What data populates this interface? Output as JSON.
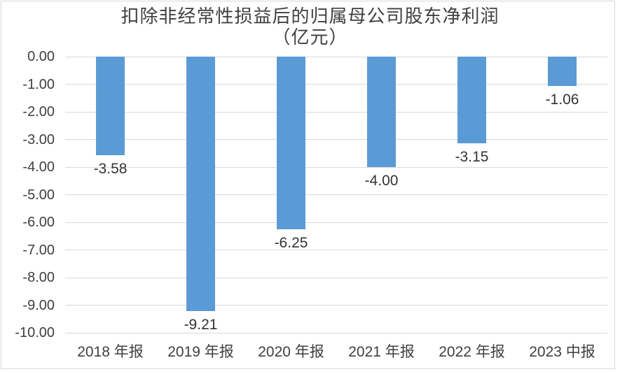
{
  "title": {
    "line1": "扣除非经常性损益后的归属母公司股东净利润",
    "line2": "（亿元）"
  },
  "colors": {
    "bar": "#5b9bd5",
    "gridline": "#d9d9d9",
    "text": "#3f3f3f",
    "border": "#d9d9d9",
    "background": "#ffffff"
  },
  "chart_data": {
    "type": "bar",
    "title": "扣除非经常性损益后的归属母公司股东净利润（亿元）",
    "categories": [
      "2018 年报",
      "2019 年报",
      "2020 年报",
      "2021 年报",
      "2022 年报",
      "2023 中报"
    ],
    "values": [
      -3.58,
      -9.21,
      -6.25,
      -4.0,
      -3.15,
      -1.06
    ],
    "data_labels": [
      "-3.58",
      "-9.21",
      "-6.25",
      "-4.00",
      "-3.15",
      "-1.06"
    ],
    "xlabel": "",
    "ylabel": "",
    "ylim": [
      -10,
      0
    ],
    "ytick_values": [
      0,
      -1,
      -2,
      -3,
      -4,
      -5,
      -6,
      -7,
      -8,
      -9,
      -10
    ],
    "yticks": [
      "0.00",
      "-1.00",
      "-2.00",
      "-3.00",
      "-4.00",
      "-5.00",
      "-6.00",
      "-7.00",
      "-8.00",
      "-9.00",
      "-10.00"
    ],
    "grid": true,
    "legend": "none",
    "bar_color": "#5b9bd5"
  }
}
